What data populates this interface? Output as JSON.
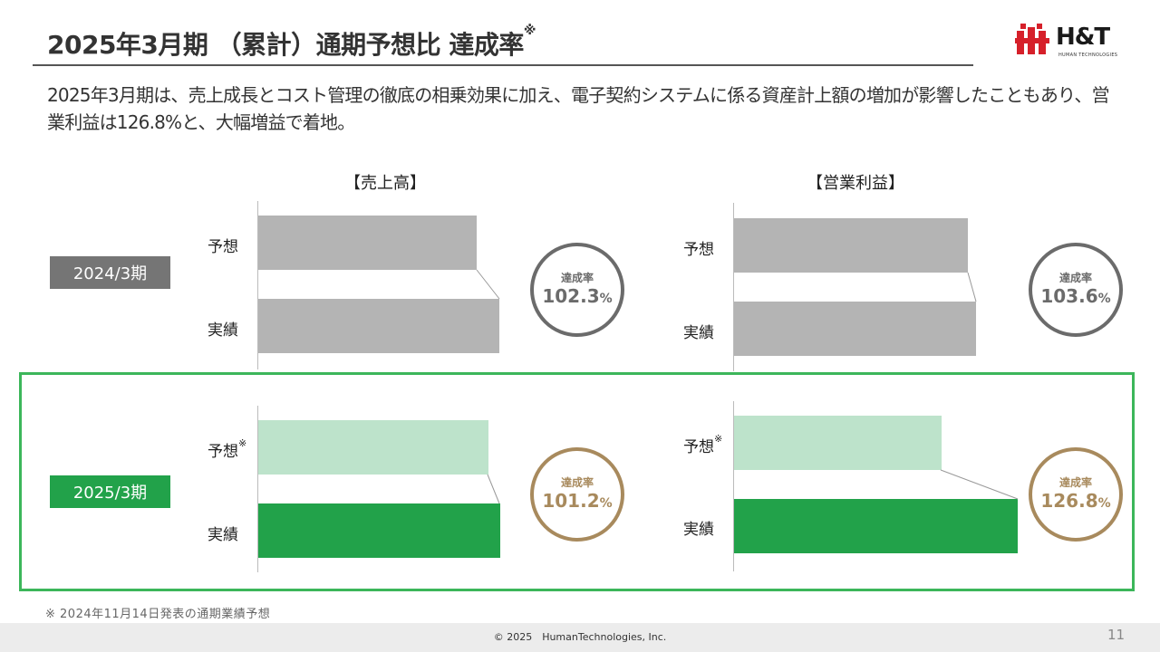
{
  "title": {
    "main": "2025年3月期 （累計）通期予想比 達成率",
    "mark": "※"
  },
  "logo": {
    "text": "H&T",
    "sub": "HUMAN TECHNOLOGIES"
  },
  "lead": "2025年3月期は、売上成長とコスト管理の徹底の相乗効果に加え、電子契約システムに係る資産計上額の増加が影響したこともあり、営業利益は126.8%と、大幅増益で着地。",
  "periods": {
    "fy2024": "2024/3期",
    "fy2025": "2025/3期"
  },
  "row_labels": {
    "forecast": "予想",
    "actual": "実績",
    "mark": "※"
  },
  "badge_label": "達成率",
  "colors": {
    "gray_bar": "#b4b4b4",
    "gray_badge": "#6b6b6b",
    "gray_period": "#757575",
    "light_green_bar": "#bde3cb",
    "green_bar": "#22a24a",
    "green_period": "#22a24a",
    "gold_badge": "#a88a5d",
    "frame": "#3cb65a"
  },
  "chart_data": [
    {
      "type": "bar",
      "title": "【売上高】",
      "categories": [
        "予想",
        "実績"
      ],
      "series": [
        {
          "name": "2024/3期",
          "values": [
            100,
            102.3
          ]
        },
        {
          "name": "2025/3期",
          "values": [
            100,
            101.2
          ]
        }
      ],
      "achievement": {
        "2024/3期": "102.3",
        "2025/3期": "101.2"
      },
      "unit": "%"
    },
    {
      "type": "bar",
      "title": "【営業利益】",
      "categories": [
        "予想",
        "実績"
      ],
      "series": [
        {
          "name": "2024/3期",
          "values": [
            100,
            103.6
          ]
        },
        {
          "name": "2025/3期",
          "values": [
            100,
            126.8
          ]
        }
      ],
      "achievement": {
        "2024/3期": "103.6",
        "2025/3期": "126.8"
      },
      "unit": "%"
    }
  ],
  "footnote": "※ 2024年11月14日発表の通期業績予想",
  "footer": {
    "copyright": "© 2025　HumanTechnologies, Inc.",
    "page": "11"
  }
}
